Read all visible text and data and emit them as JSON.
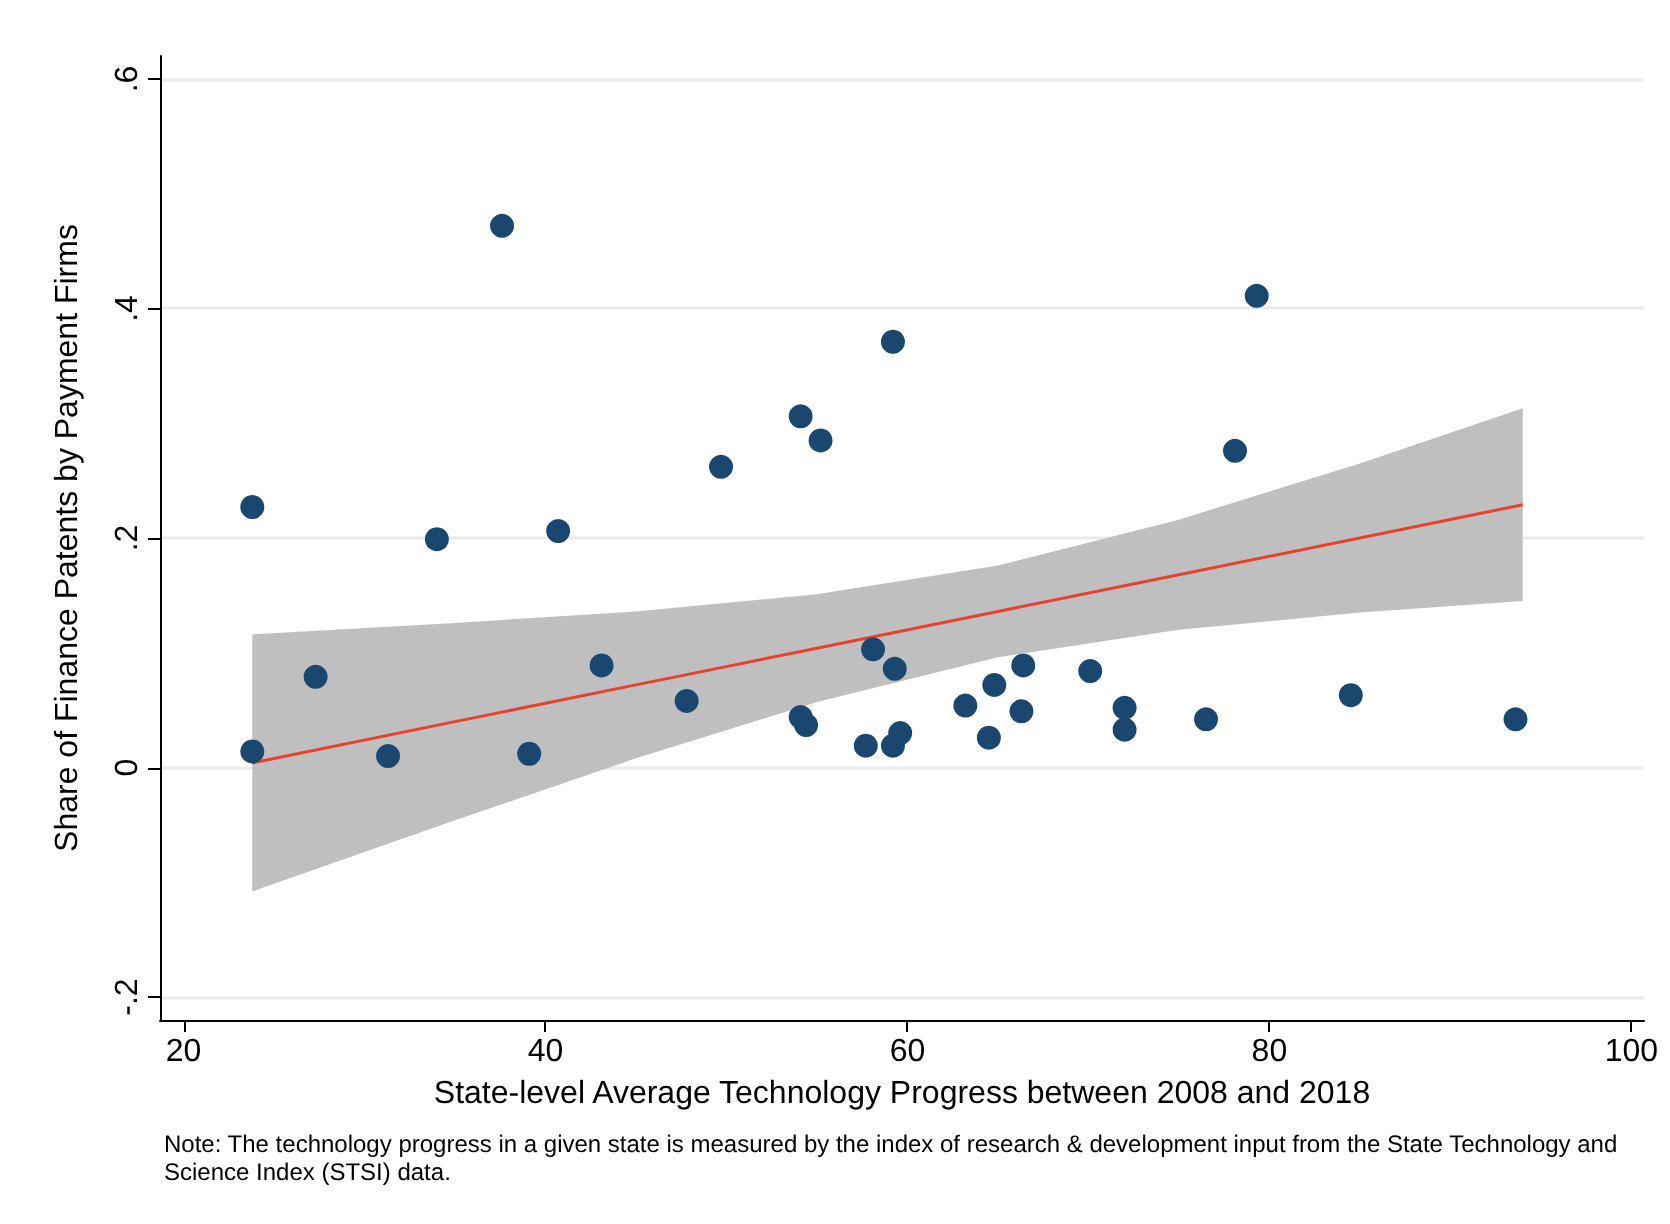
{
  "chart_data": {
    "type": "scatter",
    "xlabel": "State-level Average Technology Progress between 2008 and 2018",
    "ylabel": "Share of Finance Patents by Payment Firms",
    "annotations": [
      "Note: The technology progress in a given state is measured by the index of research & development input from the State Technology and Science Index (STSI) data."
    ],
    "series": [
      {
        "color": "#1a476f",
        "x": [
          23.8,
          23.8,
          27.3,
          31.3,
          34.0,
          37.6,
          39.1,
          40.7,
          43.1,
          47.8,
          49.7,
          54.1,
          54.1,
          54.4,
          55.2,
          58.1,
          57.7,
          59.2,
          59.3,
          59.2,
          59.6,
          63.2,
          64.5,
          64.8,
          66.4,
          66.3,
          70.1,
          72.0,
          72.0,
          76.5,
          78.1,
          79.3,
          84.5,
          93.6
        ],
        "values": [
          0.227,
          0.014,
          0.079,
          0.01,
          0.199,
          0.472,
          0.012,
          0.206,
          0.089,
          0.058,
          0.262,
          0.306,
          0.044,
          0.037,
          0.285,
          0.103,
          0.019,
          0.371,
          0.086,
          0.019,
          0.03,
          0.054,
          0.026,
          0.072,
          0.089,
          0.049,
          0.084,
          0.052,
          0.033,
          0.042,
          0.276,
          0.411,
          0.063,
          0.042
        ]
      },
      {
        "type": "line",
        "marker": "none",
        "color": "#e8412e",
        "x": [
          23.8,
          35,
          45,
          55,
          65,
          75,
          85,
          94
        ],
        "values": [
          0.004,
          0.04,
          0.072,
          0.104,
          0.136,
          0.168,
          0.2,
          0.229
        ],
        "lower": [
          -0.108,
          -0.046,
          0.008,
          0.057,
          0.096,
          0.12,
          0.135,
          0.145
        ],
        "upper": [
          0.116,
          0.126,
          0.136,
          0.151,
          0.176,
          0.216,
          0.265,
          0.313
        ]
      }
    ],
    "xlim": [
      18.7,
      100.7
    ],
    "ylim": [
      -0.22,
      0.62
    ],
    "xticks": [
      20,
      40,
      60,
      80,
      100
    ],
    "yticks": [
      {
        "value": -0.2,
        "label": "-.2"
      },
      {
        "value": 0,
        "label": "0"
      },
      {
        "value": 0.2,
        "label": ".2"
      },
      {
        "value": 0.4,
        "label": ".4"
      },
      {
        "value": 0.6,
        "label": ".6"
      }
    ],
    "grid": "y",
    "marker": "circle",
    "line_style": "solid"
  }
}
